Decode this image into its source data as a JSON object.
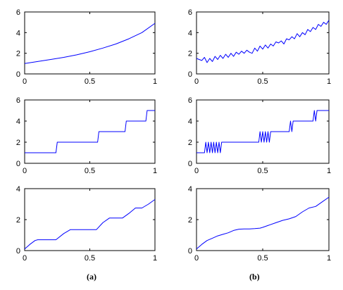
{
  "column_labels": [
    "(a)",
    "(b)"
  ],
  "colors": {
    "series": "#0000ff",
    "axes": "#000000",
    "background": "#ffffff"
  },
  "chart_data": [
    {
      "type": "line",
      "panel": "a-top",
      "xlim": [
        0,
        1
      ],
      "ylim": [
        0,
        6
      ],
      "xticks": [
        "0",
        "0.5",
        "1"
      ],
      "yticks": [
        "0",
        "2",
        "4",
        "6"
      ],
      "grid": false,
      "series": [
        {
          "x": [
            0,
            0.1,
            0.2,
            0.3,
            0.4,
            0.5,
            0.6,
            0.7,
            0.8,
            0.9,
            1.0
          ],
          "y": [
            1.0,
            1.2,
            1.4,
            1.6,
            1.85,
            2.15,
            2.5,
            2.9,
            3.4,
            4.0,
            4.9
          ]
        }
      ]
    },
    {
      "type": "line",
      "panel": "b-top",
      "xlim": [
        0,
        1
      ],
      "ylim": [
        0,
        6
      ],
      "xticks": [
        "0",
        "0.5",
        "1"
      ],
      "yticks": [
        "0",
        "2",
        "4",
        "6"
      ],
      "grid": false,
      "series": [
        {
          "x": [
            0,
            0.02,
            0.04,
            0.06,
            0.08,
            0.1,
            0.12,
            0.14,
            0.16,
            0.18,
            0.2,
            0.22,
            0.24,
            0.26,
            0.28,
            0.3,
            0.32,
            0.34,
            0.36,
            0.38,
            0.4,
            0.42,
            0.44,
            0.46,
            0.48,
            0.5,
            0.52,
            0.54,
            0.56,
            0.58,
            0.6,
            0.62,
            0.64,
            0.66,
            0.68,
            0.7,
            0.72,
            0.74,
            0.76,
            0.78,
            0.8,
            0.82,
            0.84,
            0.86,
            0.88,
            0.9,
            0.92,
            0.94,
            0.96,
            0.98,
            1.0
          ],
          "y": [
            1.5,
            1.4,
            1.3,
            1.6,
            1.1,
            1.5,
            1.2,
            1.7,
            1.4,
            1.8,
            1.5,
            1.9,
            1.6,
            2.0,
            1.7,
            2.1,
            1.9,
            2.2,
            2.0,
            2.3,
            2.1,
            2.0,
            2.5,
            2.2,
            2.7,
            2.4,
            2.8,
            2.5,
            2.9,
            2.7,
            3.1,
            3.0,
            3.2,
            2.9,
            3.4,
            3.3,
            3.6,
            3.4,
            3.9,
            3.6,
            4.0,
            3.8,
            4.3,
            4.1,
            4.5,
            4.3,
            4.8,
            4.6,
            5.0,
            4.8,
            5.2
          ]
        }
      ]
    },
    {
      "type": "line",
      "panel": "a-middle",
      "xlim": [
        0,
        1
      ],
      "ylim": [
        0,
        6
      ],
      "xticks": [
        "0",
        "0.5",
        "1"
      ],
      "yticks": [
        "0",
        "2",
        "4",
        "6"
      ],
      "grid": false,
      "series": [
        {
          "x": [
            0,
            0.24,
            0.25,
            0.56,
            0.57,
            0.77,
            0.78,
            0.93,
            0.94,
            1.0
          ],
          "y": [
            1,
            1,
            2,
            2,
            3,
            3,
            4,
            4,
            5,
            5
          ]
        }
      ]
    },
    {
      "type": "line",
      "panel": "b-middle",
      "xlim": [
        0,
        1
      ],
      "ylim": [
        0,
        6
      ],
      "xticks": [
        "0",
        "0.5",
        "1"
      ],
      "yticks": [
        "0",
        "2",
        "4",
        "6"
      ],
      "grid": false,
      "series": [
        {
          "x": [
            0,
            0.06,
            0.07,
            0.08,
            0.09,
            0.1,
            0.11,
            0.12,
            0.13,
            0.14,
            0.15,
            0.16,
            0.17,
            0.18,
            0.19,
            0.2,
            0.47,
            0.48,
            0.49,
            0.5,
            0.51,
            0.52,
            0.53,
            0.54,
            0.55,
            0.56,
            0.57,
            0.7,
            0.71,
            0.72,
            0.73,
            0.74,
            0.88,
            0.89,
            0.9,
            0.91,
            0.92,
            0.93,
            1.0
          ],
          "y": [
            1,
            1,
            2,
            1,
            2,
            1,
            2,
            1,
            2,
            1,
            2,
            1,
            2,
            1,
            2,
            2,
            2,
            3,
            2,
            3,
            2,
            3,
            2,
            3,
            2,
            3,
            3,
            3,
            4,
            3,
            4,
            4,
            4,
            5,
            4,
            5,
            5,
            5,
            5
          ]
        }
      ]
    },
    {
      "type": "line",
      "panel": "a-bottom",
      "xlim": [
        0,
        1
      ],
      "ylim": [
        0,
        4
      ],
      "xticks": [
        "0",
        "0.5",
        "1"
      ],
      "yticks": [
        "0",
        "2",
        "4"
      ],
      "grid": false,
      "series": [
        {
          "x": [
            0,
            0.04,
            0.08,
            0.1,
            0.24,
            0.3,
            0.35,
            0.55,
            0.6,
            0.65,
            0.75,
            0.8,
            0.85,
            0.9,
            0.95,
            1.0
          ],
          "y": [
            0.1,
            0.4,
            0.65,
            0.7,
            0.7,
            1.1,
            1.35,
            1.35,
            1.8,
            2.1,
            2.1,
            2.4,
            2.75,
            2.75,
            3.0,
            3.3
          ]
        }
      ]
    },
    {
      "type": "line",
      "panel": "b-bottom",
      "xlim": [
        0,
        1
      ],
      "ylim": [
        0,
        4
      ],
      "xticks": [
        "0",
        "0.5",
        "1"
      ],
      "yticks": [
        "0",
        "2",
        "4"
      ],
      "grid": false,
      "series": [
        {
          "x": [
            0,
            0.04,
            0.08,
            0.12,
            0.16,
            0.2,
            0.24,
            0.28,
            0.32,
            0.36,
            0.4,
            0.44,
            0.48,
            0.5,
            0.55,
            0.6,
            0.65,
            0.7,
            0.75,
            0.8,
            0.85,
            0.9,
            0.95,
            1.0
          ],
          "y": [
            0.1,
            0.4,
            0.65,
            0.8,
            0.95,
            1.05,
            1.15,
            1.3,
            1.38,
            1.4,
            1.4,
            1.42,
            1.45,
            1.5,
            1.65,
            1.8,
            1.95,
            2.05,
            2.2,
            2.5,
            2.75,
            2.85,
            3.15,
            3.45
          ]
        }
      ]
    }
  ]
}
